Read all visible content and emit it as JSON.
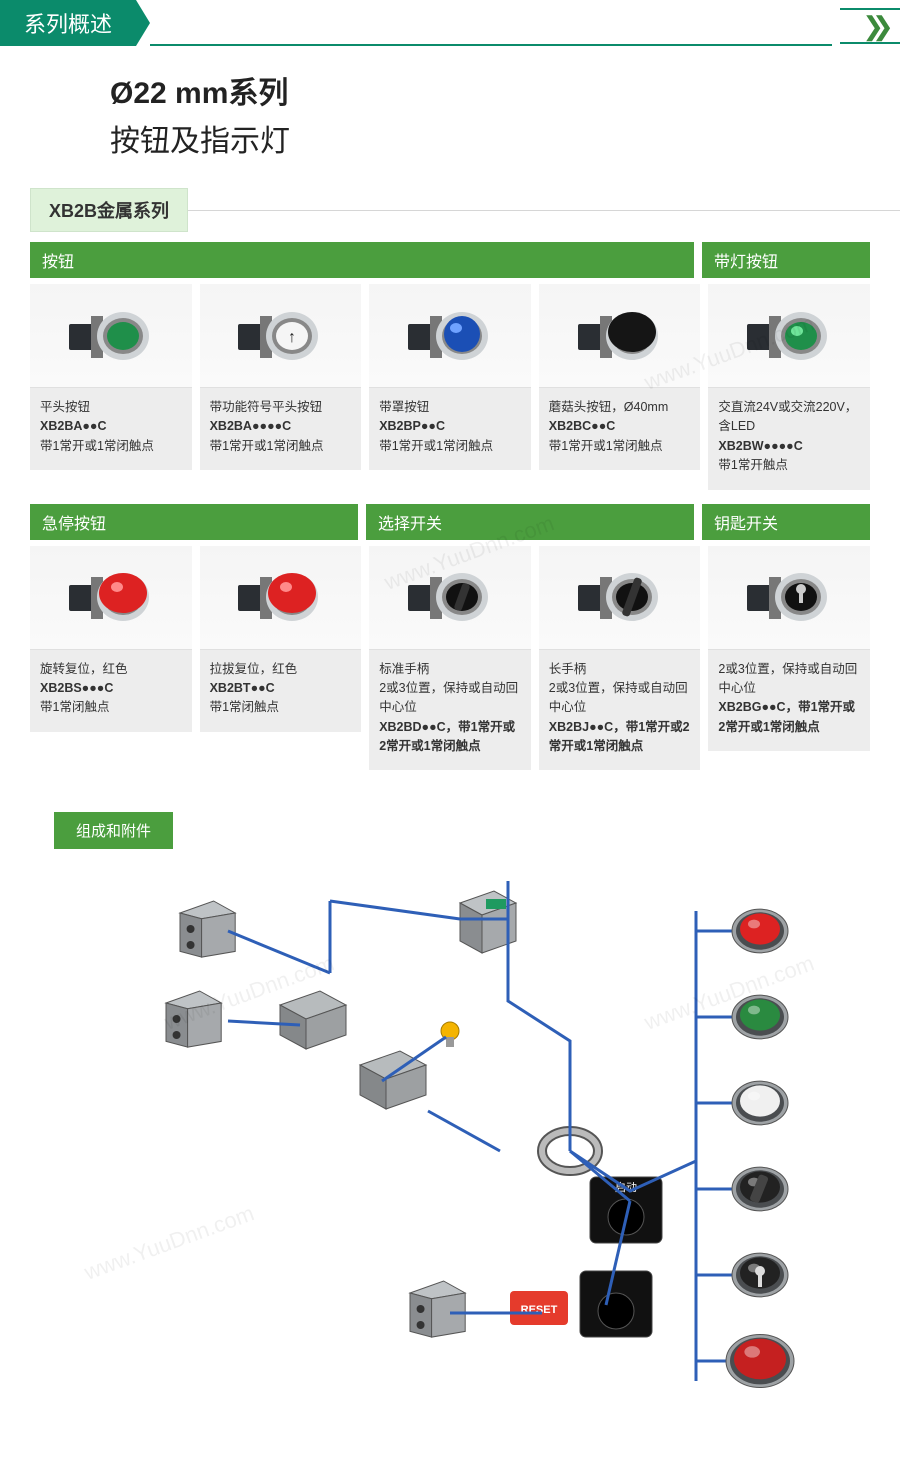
{
  "colors": {
    "tab_bg": "#0b8b6b",
    "series_bg": "#dff2da",
    "cat_bg": "#4b9e3e",
    "line": "#2e5fb7",
    "gray_box": "#ededed"
  },
  "header_tab": "系列概述",
  "title1": "Ø22 mm系列",
  "title2": "按钮及指示灯",
  "series_label": "XB2B金属系列",
  "comp_label": "组成和附件",
  "watermark": "www.YuuDnn.com",
  "row1": {
    "cats": [
      {
        "label": "按钮",
        "span": 4
      },
      {
        "label": "带灯按钮",
        "span": 1
      }
    ],
    "products": [
      {
        "glyph": "flat-green",
        "line1": "平头按钮",
        "code": "XB2BA●●C",
        "line3": "带1常开或1常闭触点"
      },
      {
        "glyph": "flat-arrow",
        "line1": "带功能符号平头按钮",
        "code": "XB2BA●●●●C",
        "line3": "带1常开或1常闭触点"
      },
      {
        "glyph": "dome-blue",
        "line1": "带罩按钮",
        "code": "XB2BP●●C",
        "line3": "带1常开或1常闭触点"
      },
      {
        "glyph": "mush-black",
        "line1": "蘑菇头按钮，Ø40mm",
        "code": "XB2BC●●C",
        "line3": "带1常开或1常闭触点"
      },
      {
        "glyph": "lit-green",
        "line1": "交直流24V或交流220V，含LED",
        "code": "XB2BW●●●●C",
        "line3": "带1常开触点"
      }
    ]
  },
  "row2": {
    "cats": [
      {
        "label": "急停按钮",
        "span": 2
      },
      {
        "label": "选择开关",
        "span": 2
      },
      {
        "label": "钥匙开关",
        "span": 1
      }
    ],
    "products": [
      {
        "glyph": "estop-red",
        "line1": "旋转复位，红色",
        "code": "XB2BS●●●C",
        "line3": "带1常闭触点"
      },
      {
        "glyph": "estop-red",
        "line1": "拉拔复位，红色",
        "code": "XB2BT●●C",
        "line3": "带1常闭触点"
      },
      {
        "glyph": "sel-short",
        "line1": "标准手柄\n2或3位置，保持或自动回中心位",
        "code": "XB2BD●●C，带1常开或2常开或1常闭触点",
        "line3": ""
      },
      {
        "glyph": "sel-long",
        "line1": "长手柄\n2或3位置，保持或自动回中心位",
        "code": "XB2BJ●●C，带1常开或2常开或1常闭触点",
        "line3": ""
      },
      {
        "glyph": "key",
        "line1": "2或3位置，保持或自动回中心位",
        "code": "XB2BG●●C，带1常开或2常开或1常闭触点",
        "line3": ""
      }
    ]
  },
  "diagram": {
    "stack_colors": [
      "#d22",
      "#2a8a40",
      "#f0f0f0",
      "#333",
      "#bbb",
      "#c52020"
    ],
    "reset_label": "RESET",
    "start_label": "启动"
  }
}
